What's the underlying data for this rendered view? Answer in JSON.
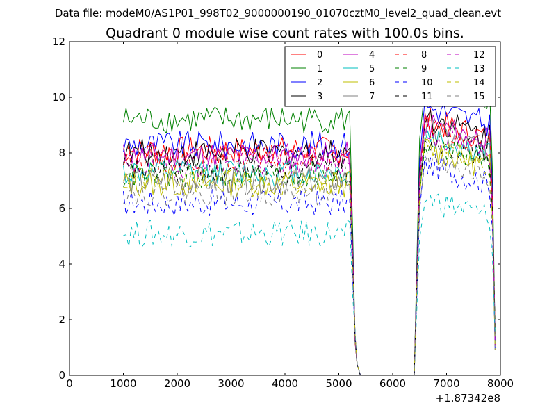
{
  "header": {
    "filename": "Data file: modeM0/AS1P01_998T02_9000000190_01070cztM0_level2_quad_clean.evt"
  },
  "chart_data": {
    "type": "line",
    "title": "Quadrant 0 module wise count rates with 100.0s bins.",
    "xlabel": "",
    "ylabel": "",
    "x_offset_label": "+1.87342e8",
    "xlim": [
      0,
      8000
    ],
    "ylim": [
      0,
      12
    ],
    "xticks": [
      0,
      1000,
      2000,
      3000,
      4000,
      5000,
      6000,
      7000,
      8000
    ],
    "yticks": [
      0,
      2,
      4,
      6,
      8,
      10,
      12
    ],
    "grid": false,
    "legend_position": "top-right",
    "legend_columns": 4,
    "gap": {
      "drop_start": 5200,
      "gap_start": 5400,
      "gap_end": 6400,
      "rise_end": 6600,
      "end": 7900
    },
    "series": [
      {
        "name": "0",
        "color": "#ff0000",
        "dashed": false,
        "level1": 8.1,
        "level2": 8.6
      },
      {
        "name": "1",
        "color": "#008000",
        "dashed": false,
        "level1": 9.2,
        "level2": 10.0
      },
      {
        "name": "2",
        "color": "#0000ff",
        "dashed": false,
        "level1": 8.3,
        "level2": 9.1
      },
      {
        "name": "3",
        "color": "#000000",
        "dashed": false,
        "level1": 8.0,
        "level2": 8.7
      },
      {
        "name": "4",
        "color": "#bf00bf",
        "dashed": false,
        "level1": 7.9,
        "level2": 8.5
      },
      {
        "name": "5",
        "color": "#00bfbf",
        "dashed": false,
        "level1": 7.3,
        "level2": 8.0
      },
      {
        "name": "6",
        "color": "#bfbf00",
        "dashed": false,
        "level1": 6.9,
        "level2": 7.6
      },
      {
        "name": "7",
        "color": "#808080",
        "dashed": false,
        "level1": 7.0,
        "level2": 8.2
      },
      {
        "name": "8",
        "color": "#ff0000",
        "dashed": true,
        "level1": 7.8,
        "level2": 8.3
      },
      {
        "name": "9",
        "color": "#008000",
        "dashed": true,
        "level1": 7.2,
        "level2": 7.8
      },
      {
        "name": "10",
        "color": "#0000ff",
        "dashed": true,
        "level1": 6.2,
        "level2": 7.0
      },
      {
        "name": "11",
        "color": "#000000",
        "dashed": true,
        "level1": 7.4,
        "level2": 8.0
      },
      {
        "name": "12",
        "color": "#bf00bf",
        "dashed": true,
        "level1": 7.6,
        "level2": 8.1
      },
      {
        "name": "13",
        "color": "#00bfbf",
        "dashed": true,
        "level1": 5.1,
        "level2": 5.8
      },
      {
        "name": "14",
        "color": "#bfbf00",
        "dashed": true,
        "level1": 7.0,
        "level2": 7.6
      },
      {
        "name": "15",
        "color": "#808080",
        "dashed": true,
        "level1": 6.6,
        "level2": 7.2
      }
    ]
  }
}
